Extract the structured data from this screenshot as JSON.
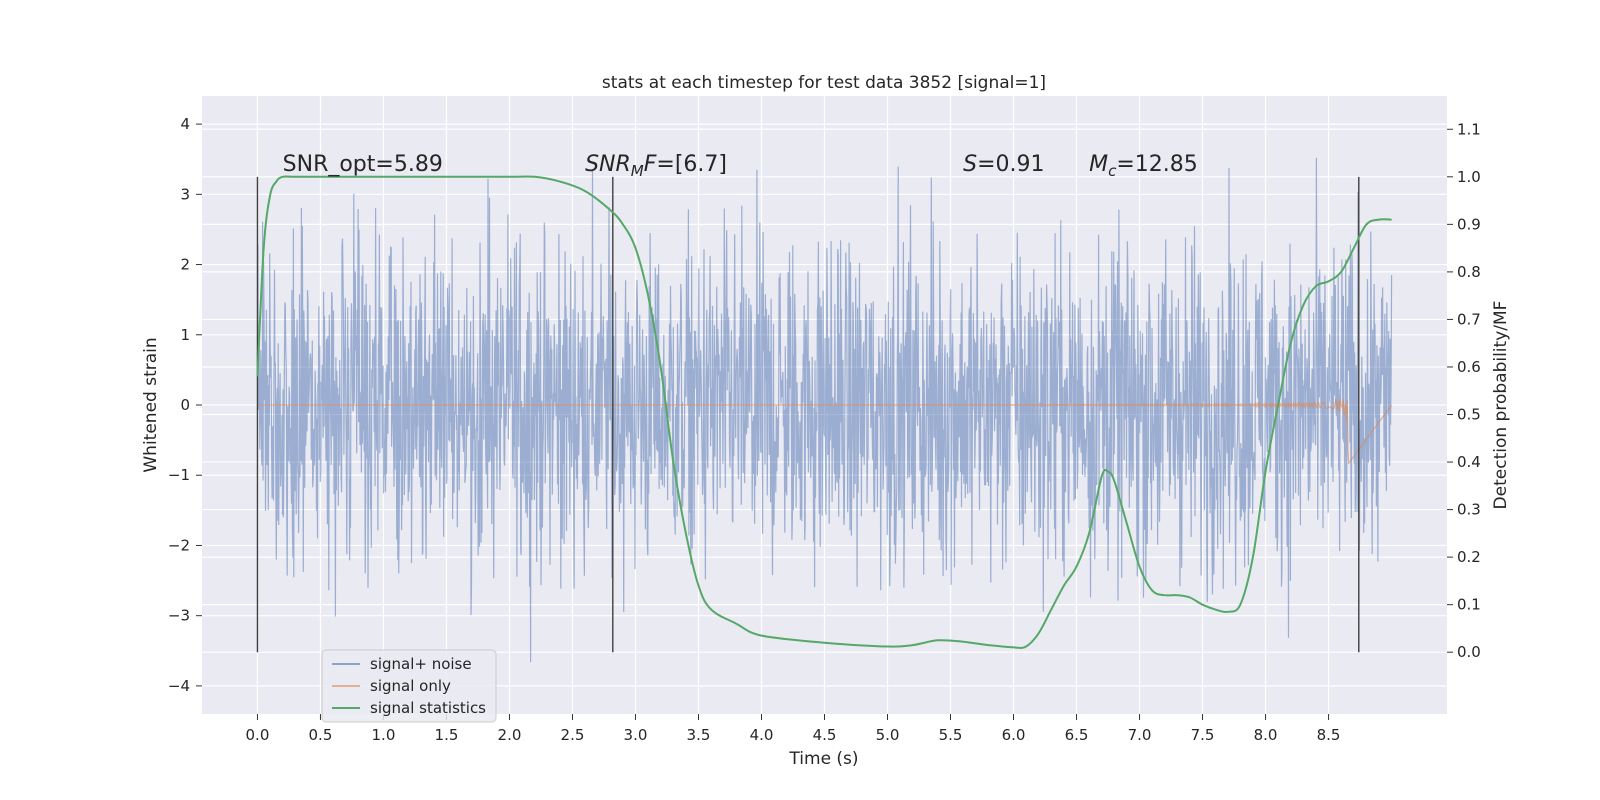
{
  "chart_data": {
    "type": "line",
    "title": "stats at each timestep for test data 3852 [signal=1]",
    "xlabel": "Time (s)",
    "ylabel": "Whitened strain",
    "y2label": "Detection probability/MF",
    "xlim": [
      -0.44,
      9.44
    ],
    "ylim": [
      -4.4,
      4.4
    ],
    "y2lim": [
      -0.13,
      1.17
    ],
    "x_ticks": [
      "0.0",
      "0.5",
      "1.0",
      "1.5",
      "2.0",
      "2.5",
      "3.0",
      "3.5",
      "4.0",
      "4.5",
      "5.0",
      "5.5",
      "6.0",
      "6.5",
      "7.0",
      "7.5",
      "8.0",
      "8.5"
    ],
    "y_ticks": [
      "4",
      "3",
      "2",
      "1",
      "0",
      "−1",
      "−2",
      "−3",
      "−4"
    ],
    "y2_ticks": [
      "1.1",
      "1.0",
      "0.9",
      "0.8",
      "0.7",
      "0.6",
      "0.5",
      "0.4",
      "0.3",
      "0.2",
      "0.1",
      "0.0"
    ],
    "annotations": [
      {
        "text": "SNR_opt=5.89",
        "x": 0.2
      },
      {
        "text": "SNRMF=[6.7]",
        "x": 2.6
      },
      {
        "text": "S=0.91",
        "x": 5.6
      },
      {
        "text": "Mc=12.85",
        "x": 6.6
      }
    ],
    "vertical_markers": [
      0.0,
      2.82,
      8.74
    ],
    "series": [
      {
        "name": "signal+ noise",
        "color": "#4c72b0",
        "axis": "left",
        "x_range": [
          0.0,
          9.0
        ],
        "amplitude_envelope": 3.9
      },
      {
        "name": "signal only",
        "color": "#dd8452",
        "axis": "left",
        "x_range": [
          0.0,
          8.66
        ],
        "peak_amplitude": 1.1
      },
      {
        "name": "signal statistics",
        "color": "#55a868",
        "axis": "right",
        "x": [
          0.0,
          0.05,
          0.1,
          0.15,
          0.2,
          0.3,
          0.5,
          1.0,
          1.5,
          2.0,
          2.2,
          2.4,
          2.6,
          2.8,
          2.9,
          3.0,
          3.1,
          3.2,
          3.3,
          3.4,
          3.5,
          3.6,
          3.8,
          4.0,
          4.5,
          5.0,
          5.2,
          5.4,
          5.6,
          5.8,
          6.0,
          6.1,
          6.2,
          6.3,
          6.4,
          6.5,
          6.6,
          6.7,
          6.75,
          6.8,
          6.9,
          7.0,
          7.1,
          7.2,
          7.3,
          7.4,
          7.5,
          7.6,
          7.7,
          7.8,
          7.9,
          8.0,
          8.1,
          8.2,
          8.3,
          8.4,
          8.5,
          8.6,
          8.7,
          8.8,
          8.9,
          9.0
        ],
        "y": [
          0.58,
          0.85,
          0.96,
          0.99,
          1.0,
          1.0,
          1.0,
          1.0,
          1.0,
          1.0,
          1.0,
          0.99,
          0.97,
          0.93,
          0.9,
          0.85,
          0.75,
          0.6,
          0.4,
          0.25,
          0.14,
          0.09,
          0.06,
          0.035,
          0.02,
          0.012,
          0.015,
          0.025,
          0.022,
          0.015,
          0.01,
          0.012,
          0.04,
          0.09,
          0.14,
          0.18,
          0.25,
          0.37,
          0.38,
          0.36,
          0.27,
          0.18,
          0.13,
          0.12,
          0.12,
          0.115,
          0.1,
          0.09,
          0.085,
          0.1,
          0.2,
          0.38,
          0.52,
          0.65,
          0.73,
          0.77,
          0.78,
          0.8,
          0.85,
          0.9,
          0.91,
          0.91
        ]
      }
    ],
    "legend_position": "lower-left",
    "grid": true
  }
}
